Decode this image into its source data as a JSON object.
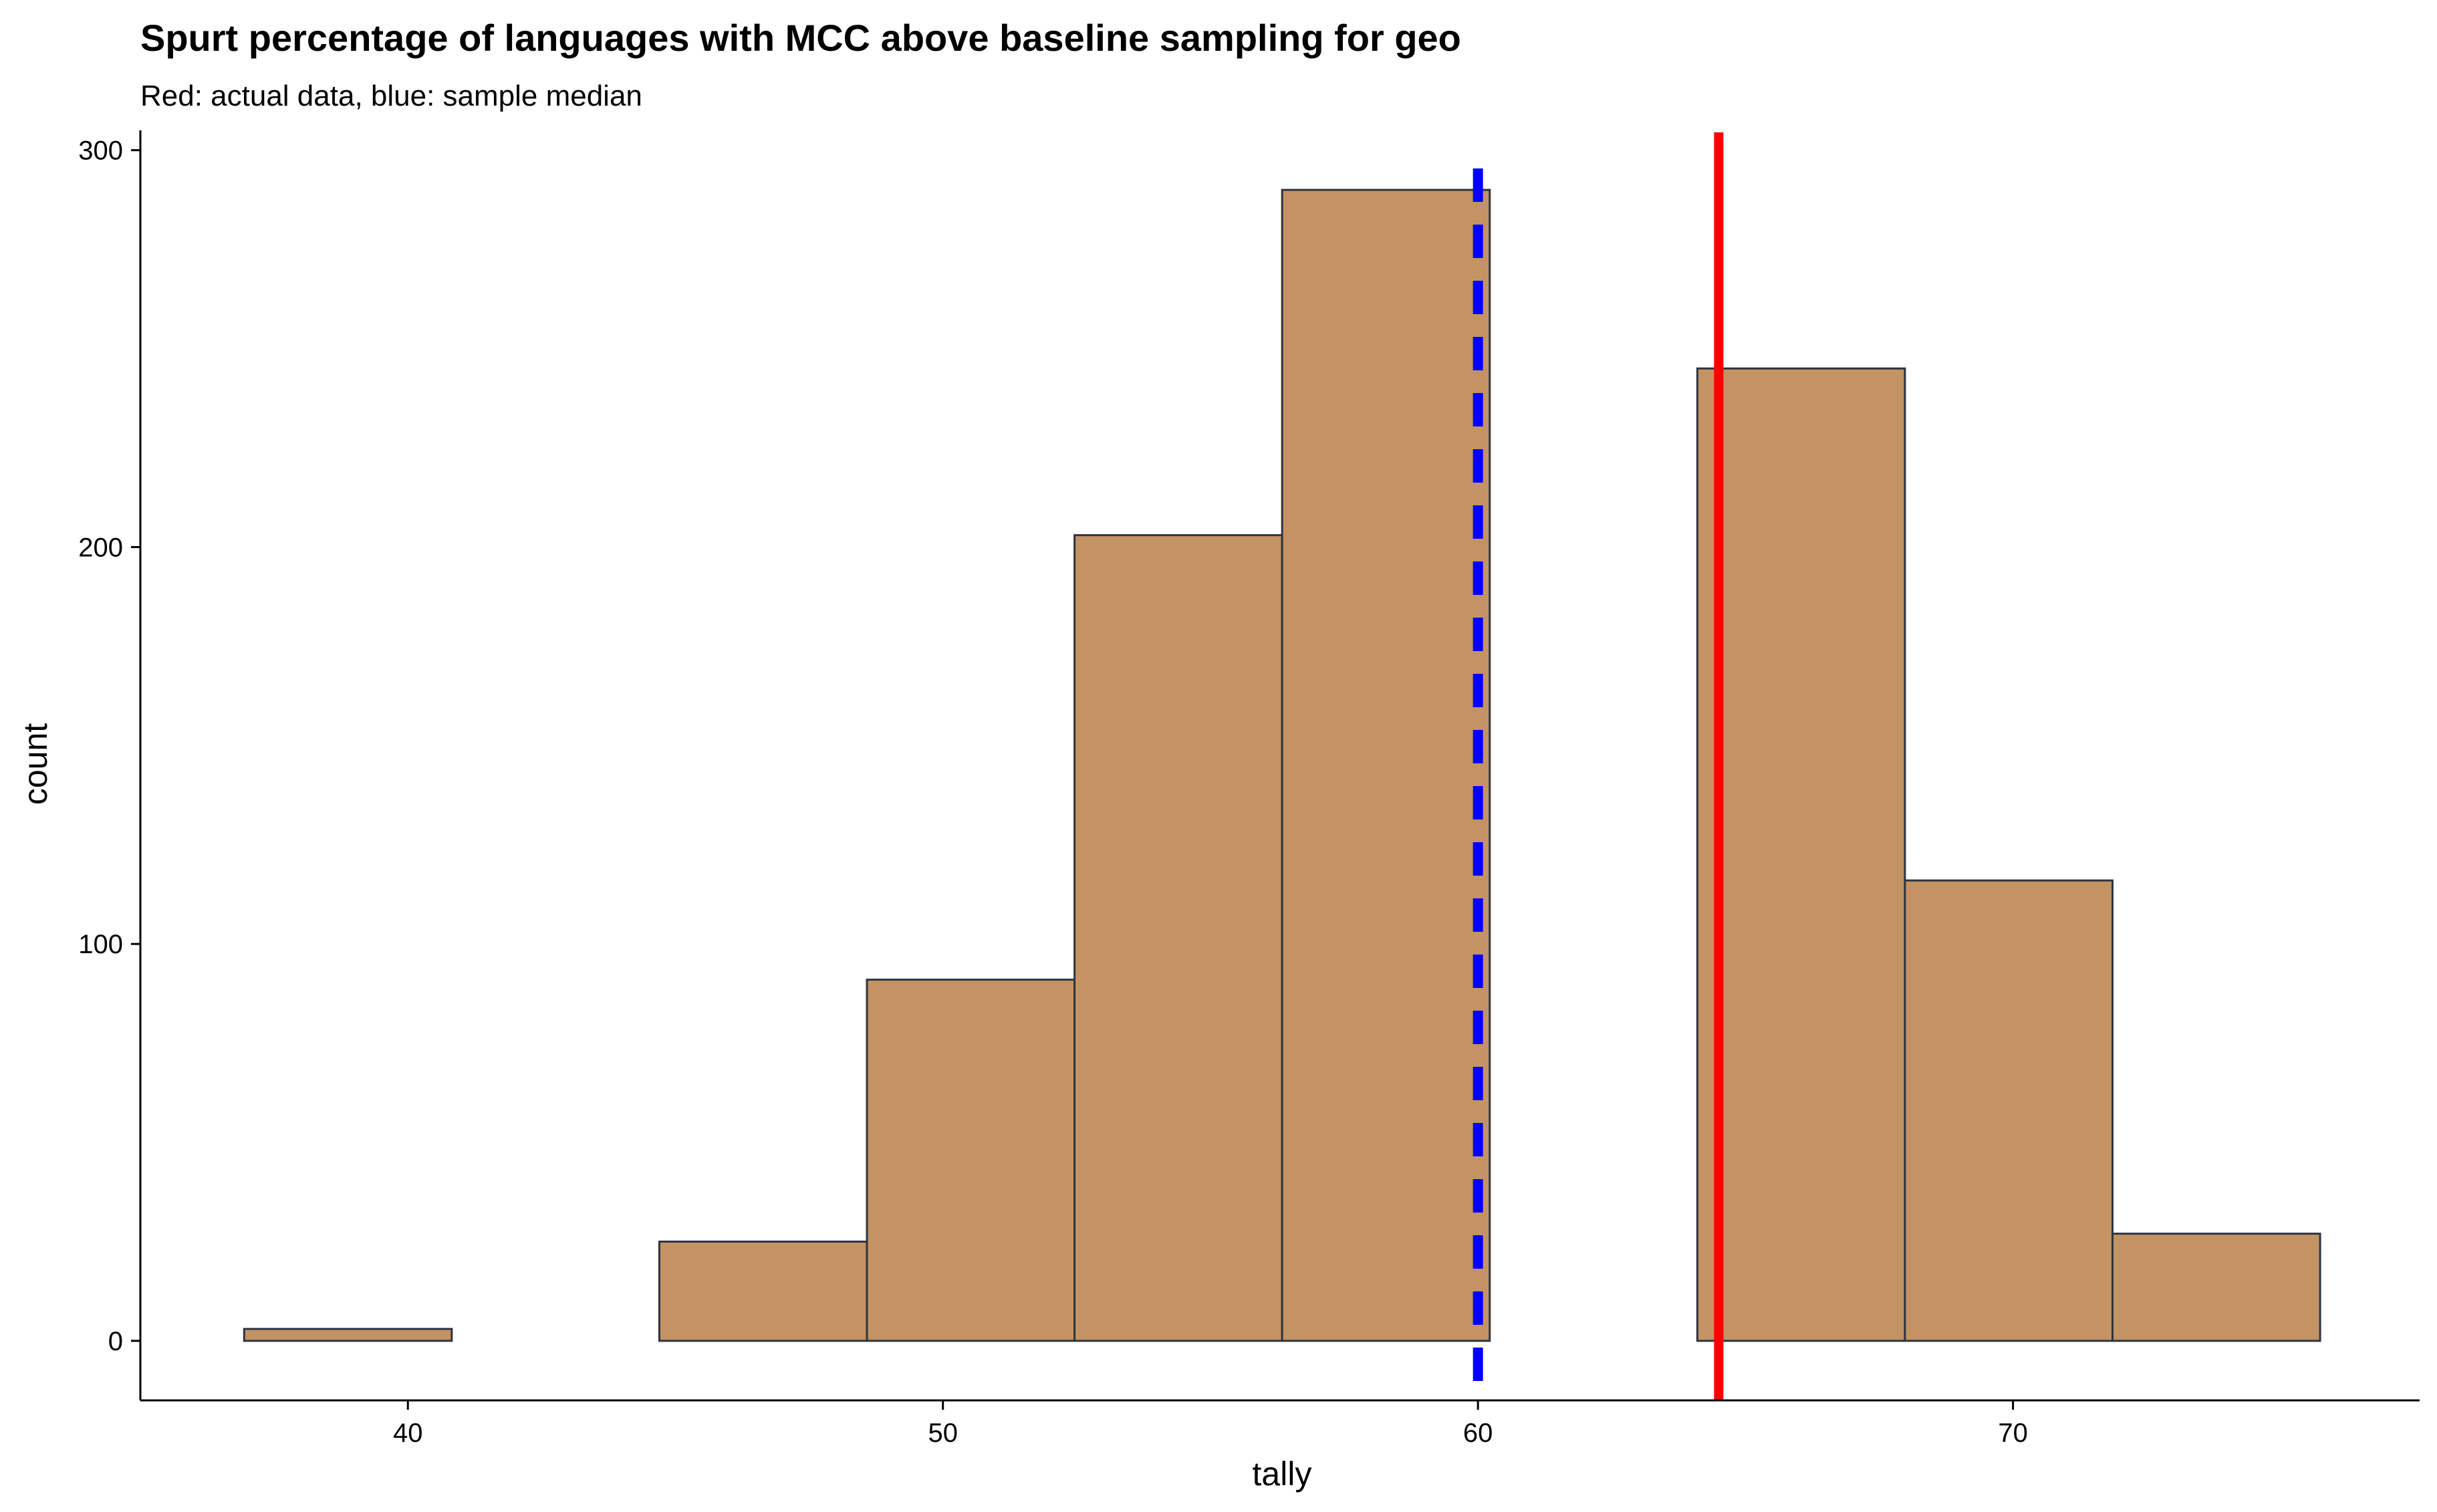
{
  "chart_data": {
    "type": "bar",
    "title": "Spurt percentage of languages with MCC above baseline sampling for geo",
    "subtitle": "Red: actual data, blue: sample median",
    "xlabel": "tally",
    "ylabel": "count",
    "xlim": [
      35,
      77.6
    ],
    "ylim": [
      -15,
      305
    ],
    "x_ticks": [
      40,
      50,
      60,
      70
    ],
    "y_ticks": [
      0,
      100,
      200,
      300
    ],
    "grid": false,
    "bin_width": 3.88,
    "bins": [
      {
        "start": 36.94,
        "end": 40.82,
        "count": 3
      },
      {
        "start": 40.82,
        "end": 44.7,
        "count": 0
      },
      {
        "start": 44.7,
        "end": 48.58,
        "count": 25
      },
      {
        "start": 48.58,
        "end": 52.46,
        "count": 91
      },
      {
        "start": 52.46,
        "end": 56.34,
        "count": 203
      },
      {
        "start": 56.34,
        "end": 60.22,
        "count": 290
      },
      {
        "start": 60.22,
        "end": 64.1,
        "count": 0
      },
      {
        "start": 64.1,
        "end": 67.98,
        "count": 245
      },
      {
        "start": 67.98,
        "end": 71.86,
        "count": 116
      },
      {
        "start": 71.86,
        "end": 75.74,
        "count": 27
      }
    ],
    "bar_fill": "#c49363",
    "bar_stroke": "#2e3440",
    "reference_lines": [
      {
        "label": "actual data",
        "x": 64.5,
        "color": "#ff0000",
        "style": "solid"
      },
      {
        "label": "sample median",
        "x": 60.0,
        "color": "#0000ff",
        "style": "dashed"
      }
    ]
  }
}
